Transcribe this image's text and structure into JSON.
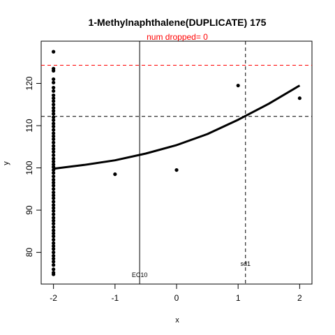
{
  "chart_data": {
    "type": "scatter",
    "title": "1-Methylnaphthalene(DUPLICATE) 175",
    "subtitle": "num dropped= 0",
    "xlabel": "x",
    "ylabel": "y",
    "xlim": [
      -2.2,
      2.2
    ],
    "ylim": [
      72.5,
      130
    ],
    "x_ticks": [
      -2,
      -1,
      0,
      1,
      2
    ],
    "y_ticks": [
      80,
      90,
      100,
      110,
      120
    ],
    "points": [
      {
        "x": -2,
        "y": 127.5
      },
      {
        "x": -2,
        "y": 123.5
      },
      {
        "x": -2,
        "y": 123
      },
      {
        "x": -2,
        "y": 121
      },
      {
        "x": -2,
        "y": 120.2
      },
      {
        "x": -2,
        "y": 119
      },
      {
        "x": -2,
        "y": 118.2
      },
      {
        "x": -2,
        "y": 117.2
      },
      {
        "x": -2,
        "y": 116.5
      },
      {
        "x": -2,
        "y": 115.8
      },
      {
        "x": -2,
        "y": 115
      },
      {
        "x": -2,
        "y": 114.2
      },
      {
        "x": -2,
        "y": 113.5
      },
      {
        "x": -2,
        "y": 112.8
      },
      {
        "x": -2,
        "y": 112
      },
      {
        "x": -2,
        "y": 111.3
      },
      {
        "x": -2,
        "y": 110.5
      },
      {
        "x": -2,
        "y": 109.8
      },
      {
        "x": -2,
        "y": 109
      },
      {
        "x": -2,
        "y": 108.2
      },
      {
        "x": -2,
        "y": 107.5
      },
      {
        "x": -2,
        "y": 106.8
      },
      {
        "x": -2,
        "y": 106
      },
      {
        "x": -2,
        "y": 105.2
      },
      {
        "x": -2,
        "y": 104.5
      },
      {
        "x": -2,
        "y": 103.8
      },
      {
        "x": -2,
        "y": 103
      },
      {
        "x": -2,
        "y": 102.2
      },
      {
        "x": -2,
        "y": 101.5
      },
      {
        "x": -2,
        "y": 100.8
      },
      {
        "x": -2,
        "y": 100.2
      },
      {
        "x": -2,
        "y": 99.5
      },
      {
        "x": -2,
        "y": 98.8
      },
      {
        "x": -2,
        "y": 98
      },
      {
        "x": -2,
        "y": 97.2
      },
      {
        "x": -2,
        "y": 96.5
      },
      {
        "x": -2,
        "y": 95.8
      },
      {
        "x": -2,
        "y": 95
      },
      {
        "x": -2,
        "y": 94.2
      },
      {
        "x": -2,
        "y": 93.5
      },
      {
        "x": -2,
        "y": 92.8
      },
      {
        "x": -2,
        "y": 92
      },
      {
        "x": -2,
        "y": 91.2
      },
      {
        "x": -2,
        "y": 90.5
      },
      {
        "x": -2,
        "y": 89.8
      },
      {
        "x": -2,
        "y": 89
      },
      {
        "x": -2,
        "y": 88.2
      },
      {
        "x": -2,
        "y": 87.5
      },
      {
        "x": -2,
        "y": 86.8
      },
      {
        "x": -2,
        "y": 86
      },
      {
        "x": -2,
        "y": 85.2
      },
      {
        "x": -2,
        "y": 84.5
      },
      {
        "x": -2,
        "y": 83.8
      },
      {
        "x": -2,
        "y": 83
      },
      {
        "x": -2,
        "y": 82.2
      },
      {
        "x": -2,
        "y": 81.5
      },
      {
        "x": -2,
        "y": 80.8
      },
      {
        "x": -2,
        "y": 80
      },
      {
        "x": -2,
        "y": 79.2
      },
      {
        "x": -2,
        "y": 78.5
      },
      {
        "x": -2,
        "y": 77.8
      },
      {
        "x": -2,
        "y": 77
      },
      {
        "x": -2,
        "y": 76
      },
      {
        "x": -2,
        "y": 75.2
      },
      {
        "x": -2,
        "y": 74.8
      },
      {
        "x": -1,
        "y": 98.5
      },
      {
        "x": 0,
        "y": 99.5
      },
      {
        "x": 1,
        "y": 119.5
      },
      {
        "x": 2,
        "y": 116.5
      }
    ],
    "fit_curve": {
      "x": [
        -2,
        -1.5,
        -1,
        -0.5,
        0,
        0.5,
        1,
        1.5,
        2
      ],
      "y": [
        99.8,
        100.7,
        101.8,
        103.4,
        105.4,
        108.0,
        111.4,
        115.2,
        119.5
      ]
    },
    "lines": {
      "red_hline": {
        "y": 124.3,
        "color": "#ff0000",
        "style": "dashed"
      },
      "black_hline": {
        "y": 112.2,
        "color": "#000000",
        "style": "dashed"
      },
      "ec10_vline": {
        "x": -0.6,
        "color": "#000000",
        "style": "solid",
        "label": "EC10"
      },
      "sd1_vline": {
        "x": 1.12,
        "color": "#000000",
        "style": "dashed",
        "label": "sd1"
      }
    }
  }
}
